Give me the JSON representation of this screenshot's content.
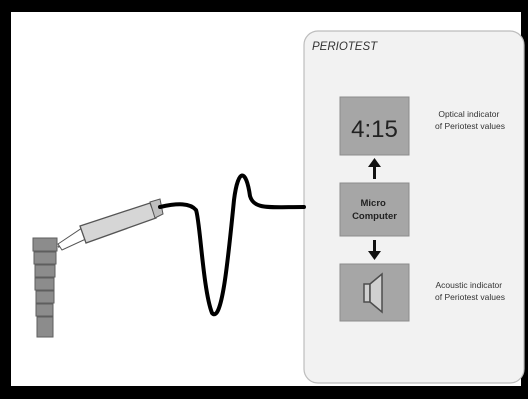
{
  "device": {
    "title": "PERIOTEST",
    "display_value": "4:15",
    "micro_computer_label": [
      "Micro",
      "Computer"
    ],
    "optical_indicator_label": [
      "Optical indicator",
      "of Periotest values"
    ],
    "acoustic_indicator_label": [
      "Acoustic indicator",
      "of Periotest values"
    ],
    "speaker_icon": "speaker-icon"
  },
  "colors": {
    "frame": "#000000",
    "background": "#ffffff",
    "panel": "#f2f2f2",
    "box": "#a6a6a6",
    "text": "#333333"
  }
}
